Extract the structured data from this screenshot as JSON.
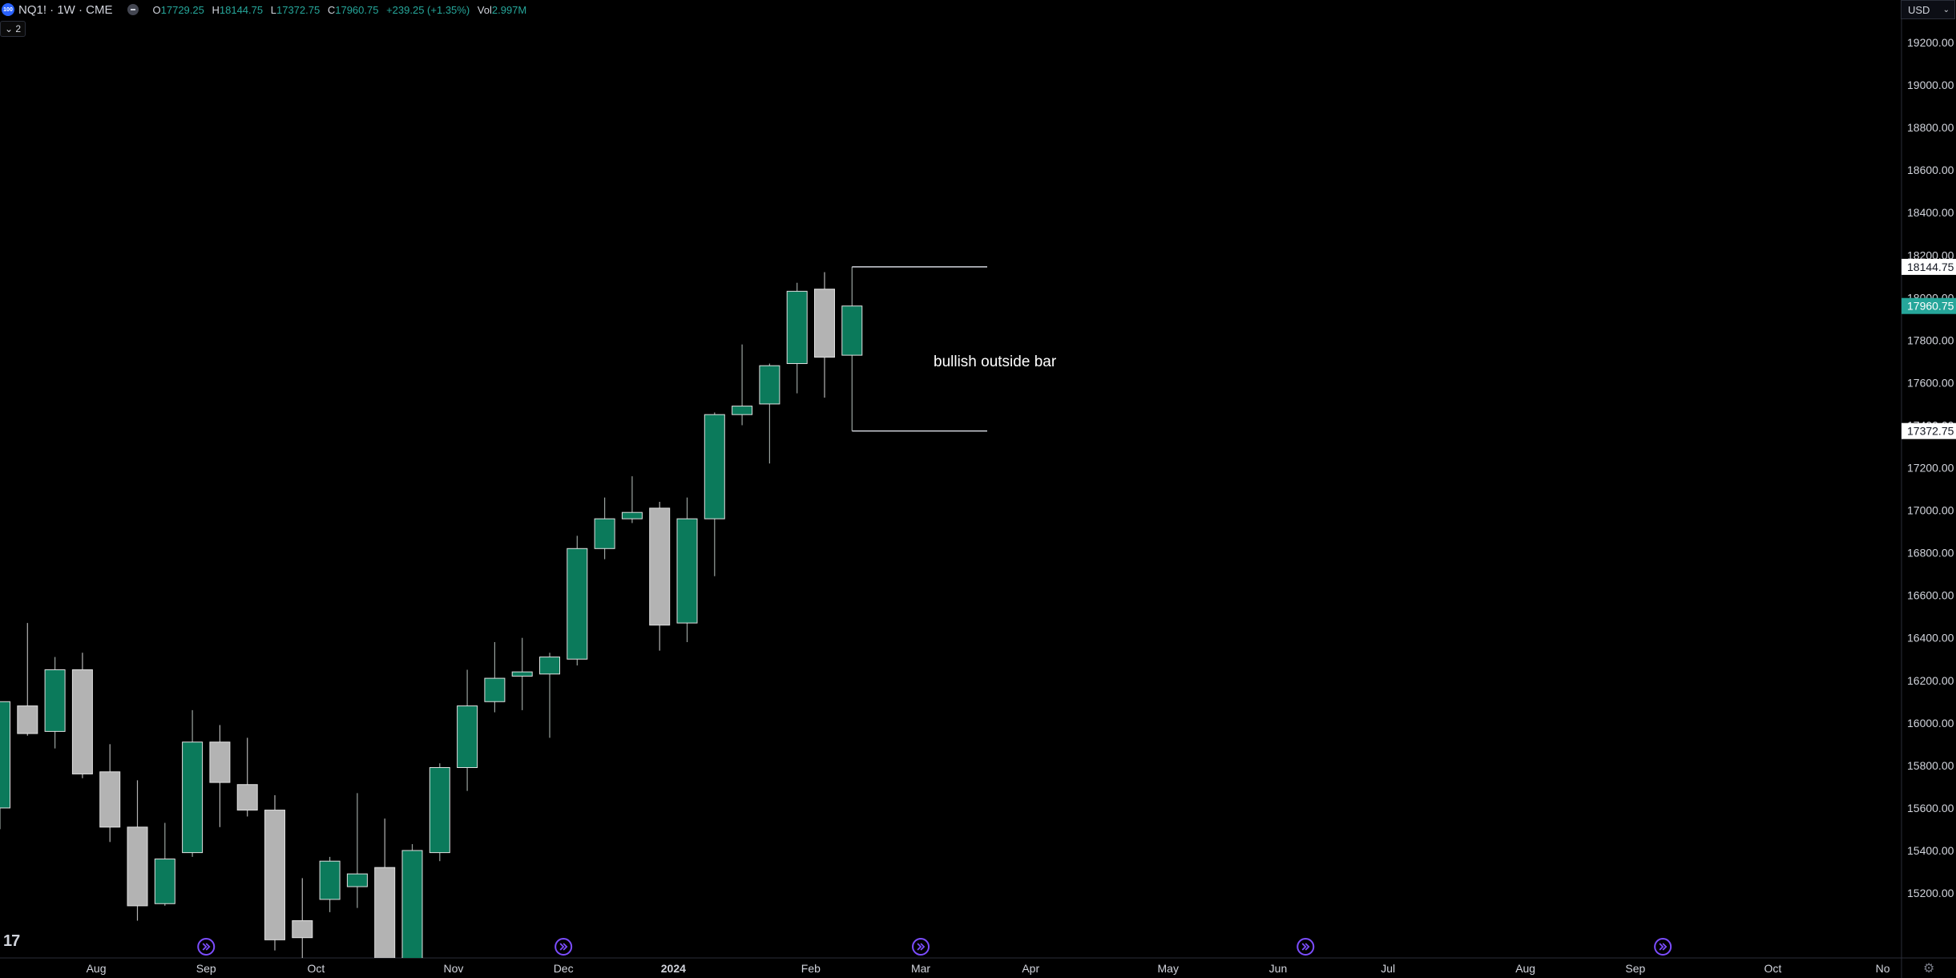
{
  "header": {
    "icon_text": "100",
    "symbol": "NQ1! · 1W · CME",
    "open_key": "O",
    "open": "17729.25",
    "high_key": "H",
    "high": "18144.75",
    "low_key": "L",
    "low": "17372.75",
    "close_key": "C",
    "close": "17960.75",
    "change": "+239.25 (+1.35%)",
    "vol_key": "Vol",
    "vol": "2.997M"
  },
  "indicator_toggle": "2",
  "currency": "USD",
  "logo": "17",
  "chart_data": {
    "type": "candlestick",
    "title": "NQ1! · 1W · CME",
    "ylim": [
      15100,
      19350
    ],
    "y_ticks": [
      15200,
      15400,
      15600,
      15800,
      16000,
      16200,
      16400,
      16600,
      16800,
      17000,
      17200,
      17400,
      17600,
      17800,
      18000,
      18200,
      18400,
      18600,
      18800,
      19000,
      19200
    ],
    "y_tick_labels": [
      "15200.00",
      "15400.00",
      "15600.00",
      "15800.00",
      "16000.00",
      "16200.00",
      "16400.00",
      "16600.00",
      "16800.00",
      "17000.00",
      "17200.00",
      "17400.00",
      "17600.00",
      "17800.00",
      "18000.00",
      "18200.00",
      "18400.00",
      "18600.00",
      "18800.00",
      "19000.00",
      "19200.00"
    ],
    "x_labels": [
      {
        "label": "Aug",
        "bar": 3.5
      },
      {
        "label": "Sep",
        "bar": 7.5
      },
      {
        "label": "Oct",
        "bar": 11.5
      },
      {
        "label": "Nov",
        "bar": 16.5
      },
      {
        "label": "Dec",
        "bar": 20.5
      },
      {
        "label": "2024",
        "bar": 24.5
      },
      {
        "label": "Feb",
        "bar": 29.5
      },
      {
        "label": "Mar",
        "bar": 33.5
      },
      {
        "label": "Apr",
        "bar": 37.5
      },
      {
        "label": "May",
        "bar": 42.5
      },
      {
        "label": "Jun",
        "bar": 46.5
      },
      {
        "label": "Jul",
        "bar": 50.5
      },
      {
        "label": "Aug",
        "bar": 55.5
      },
      {
        "label": "Sep",
        "bar": 59.5
      },
      {
        "label": "Oct",
        "bar": 64.5
      },
      {
        "label": "No",
        "bar": 68.5
      }
    ],
    "candles": [
      {
        "o": 15600,
        "h": 16100,
        "l": 15500,
        "c": 16100
      },
      {
        "o": 16080,
        "h": 16470,
        "l": 15940,
        "c": 15950
      },
      {
        "o": 15960,
        "h": 16310,
        "l": 15880,
        "c": 16250
      },
      {
        "o": 16250,
        "h": 16330,
        "l": 15740,
        "c": 15760
      },
      {
        "o": 15770,
        "h": 15900,
        "l": 15440,
        "c": 15510
      },
      {
        "o": 15510,
        "h": 15730,
        "l": 15070,
        "c": 15140
      },
      {
        "o": 15150,
        "h": 15530,
        "l": 15140,
        "c": 15360
      },
      {
        "o": 15390,
        "h": 16060,
        "l": 15370,
        "c": 15910
      },
      {
        "o": 15910,
        "h": 15990,
        "l": 15510,
        "c": 15720
      },
      {
        "o": 15710,
        "h": 15930,
        "l": 15560,
        "c": 15590
      },
      {
        "o": 15590,
        "h": 15660,
        "l": 14930,
        "c": 14980
      },
      {
        "o": 14990,
        "h": 15270,
        "l": 14800,
        "c": 15070
      },
      {
        "o": 15170,
        "h": 15370,
        "l": 15110,
        "c": 15350
      },
      {
        "o": 15230,
        "h": 15670,
        "l": 15130,
        "c": 15290
      },
      {
        "o": 15320,
        "h": 15550,
        "l": 14750,
        "c": 14800
      },
      {
        "o": 14790,
        "h": 15430,
        "l": 14700,
        "c": 15400
      },
      {
        "o": 15390,
        "h": 15810,
        "l": 15350,
        "c": 15790
      },
      {
        "o": 15790,
        "h": 16250,
        "l": 15680,
        "c": 16080
      },
      {
        "o": 16100,
        "h": 16380,
        "l": 16050,
        "c": 16210
      },
      {
        "o": 16220,
        "h": 16400,
        "l": 16060,
        "c": 16240
      },
      {
        "o": 16230,
        "h": 16330,
        "l": 15930,
        "c": 16310
      },
      {
        "o": 16300,
        "h": 16880,
        "l": 16270,
        "c": 16820
      },
      {
        "o": 16820,
        "h": 17060,
        "l": 16770,
        "c": 16960
      },
      {
        "o": 16960,
        "h": 17160,
        "l": 16940,
        "c": 16990
      },
      {
        "o": 17010,
        "h": 17040,
        "l": 16340,
        "c": 16460
      },
      {
        "o": 16470,
        "h": 17060,
        "l": 16380,
        "c": 16960
      },
      {
        "o": 16960,
        "h": 17460,
        "l": 16690,
        "c": 17450
      },
      {
        "o": 17450,
        "h": 17780,
        "l": 17400,
        "c": 17490
      },
      {
        "o": 17500,
        "h": 17690,
        "l": 17220,
        "c": 17680
      },
      {
        "o": 17690,
        "h": 18070,
        "l": 17550,
        "c": 18030
      },
      {
        "o": 18040,
        "h": 18120,
        "l": 17530,
        "c": 17720
      },
      {
        "o": 17729.25,
        "h": 18144.75,
        "l": 17372.75,
        "c": 17960.75
      }
    ],
    "bar_colors": [
      "up",
      "down",
      "up",
      "down",
      "down",
      "down",
      "up",
      "up",
      "down",
      "down",
      "down",
      "down",
      "up",
      "up",
      "down",
      "up",
      "up",
      "up",
      "up",
      "up",
      "up",
      "up",
      "up",
      "up",
      "down",
      "up",
      "up",
      "up",
      "up",
      "up",
      "down",
      "up"
    ],
    "annotation": "bullish outside bar",
    "range_high": 18144.75,
    "range_low": 17372.75,
    "price_labels": [
      {
        "text": "18144.75",
        "value": 18144.75,
        "style": "white"
      },
      {
        "text": "17960.75",
        "value": 17960.75,
        "style": "green"
      },
      {
        "text": "17372.75",
        "value": 17372.75,
        "style": "white"
      }
    ],
    "event_markers_at_bars": [
      7.5,
      20.5,
      33.5,
      47.5,
      60.5
    ],
    "colors": {
      "up": "#0b7a5b",
      "down": "#b3b3b3",
      "background": "#000000",
      "axis_text": "#d1d4dc",
      "marker": "#7c4dff",
      "current_price": "#26a69a"
    }
  }
}
